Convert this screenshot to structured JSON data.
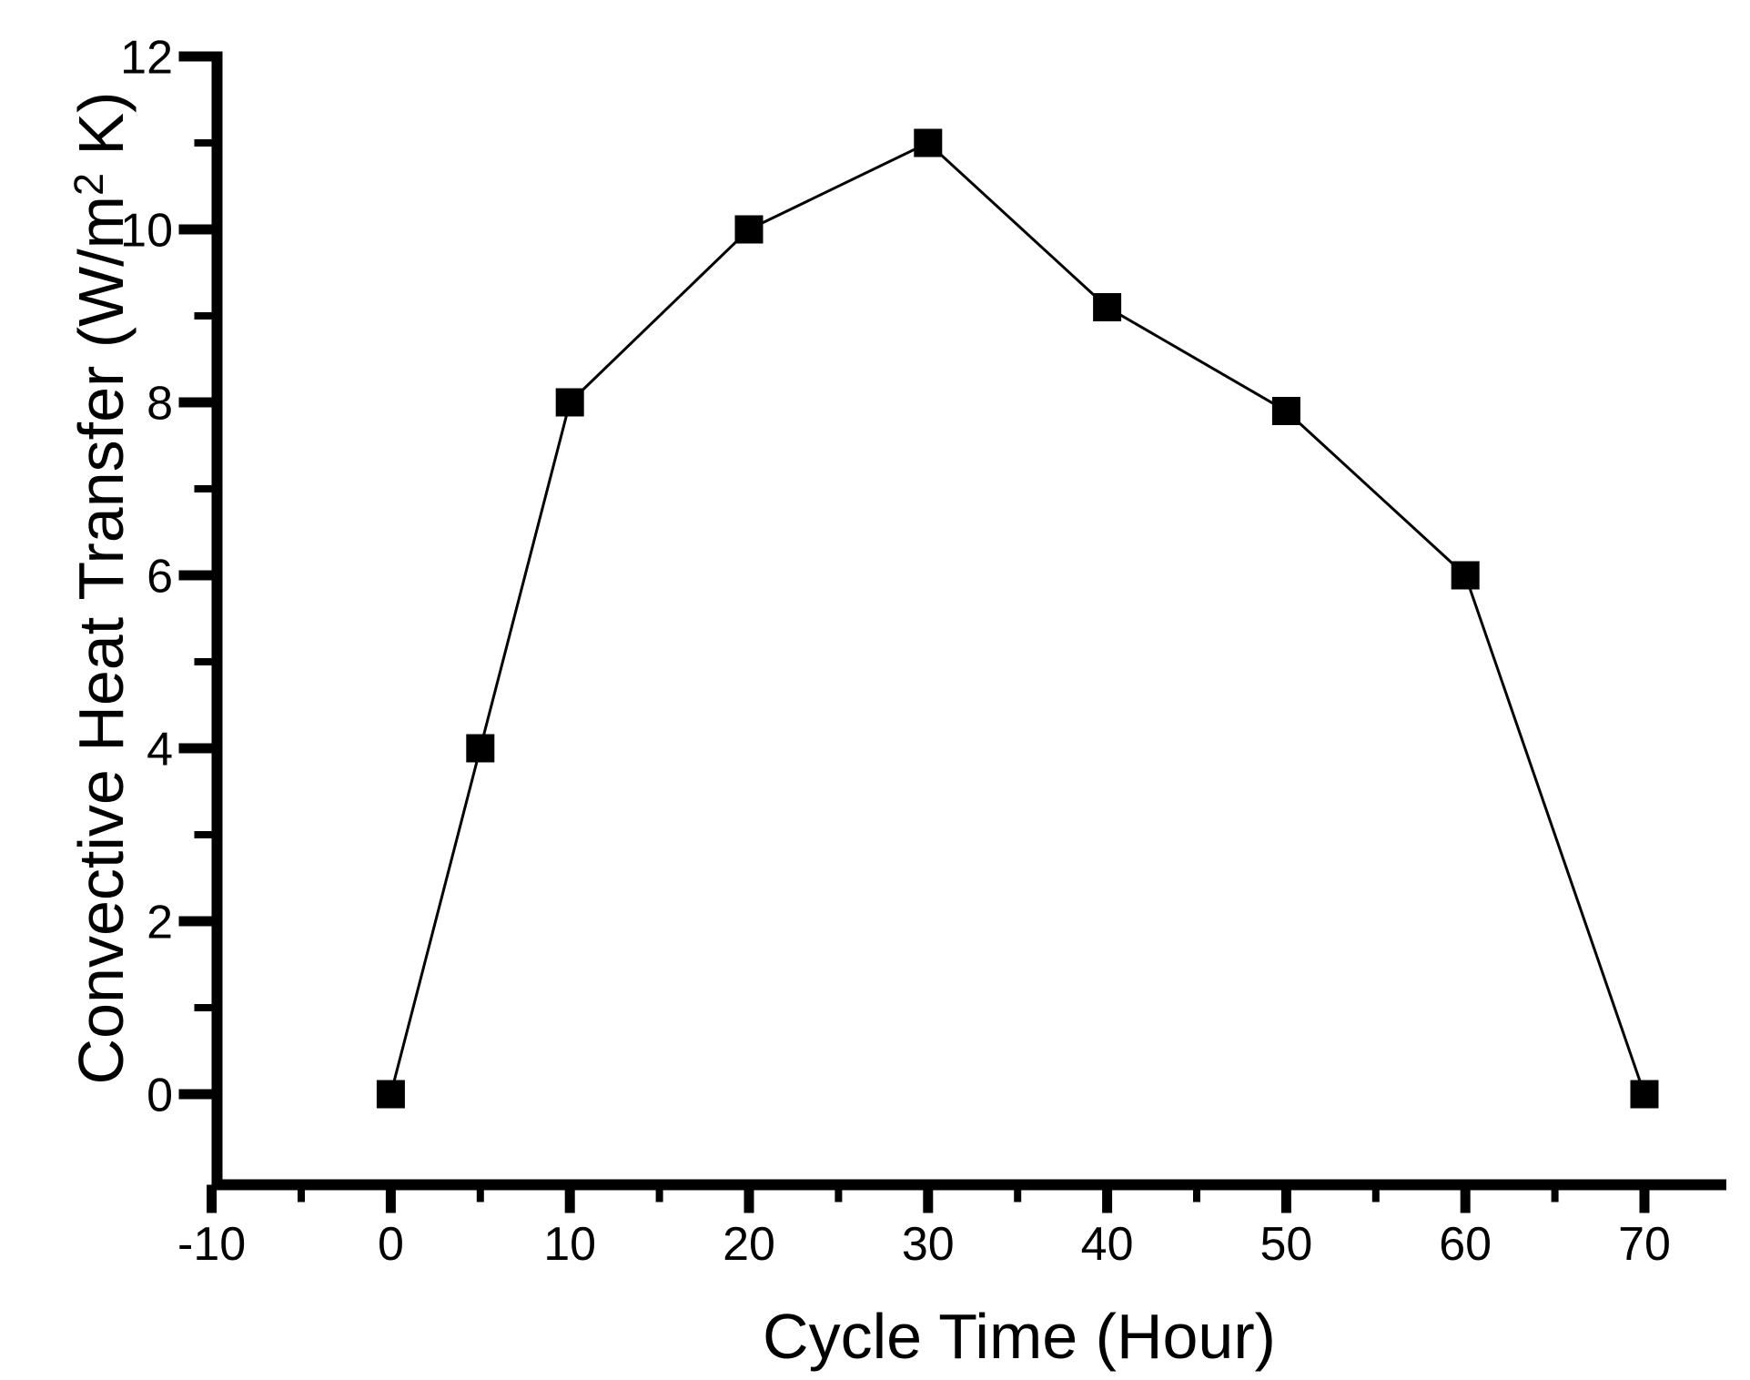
{
  "chart_data": {
    "type": "line",
    "series": [
      {
        "name": "convective-heat-transfer",
        "x": [
          0,
          5,
          10,
          20,
          30,
          40,
          50,
          60,
          70
        ],
        "y": [
          0,
          4,
          8,
          10,
          11,
          9.1,
          7.9,
          6,
          0
        ],
        "marker": "filled-square",
        "line_style": "solid",
        "color": "#000000"
      }
    ],
    "xlabel": "Cycle Time (Hour)",
    "ylabel": "Convective Heat Transfer (W/m² K)",
    "ylabel_parts": {
      "base": "Convective Heat Transfer (W/m",
      "superscript": "2",
      "end": " K)"
    },
    "x_major_ticks": [
      -10,
      0,
      10,
      20,
      30,
      40,
      50,
      60,
      70
    ],
    "x_minor_ticks": [
      -5,
      5,
      15,
      25,
      35,
      45,
      55,
      65
    ],
    "y_major_ticks": [
      0,
      2,
      4,
      6,
      8,
      10,
      12
    ],
    "y_minor_ticks": [
      1,
      3,
      5,
      7,
      9,
      11
    ],
    "xlim": [
      -10,
      74.6
    ],
    "ylim": [
      -1.05,
      12
    ],
    "grid": false,
    "legend": "none",
    "tick_direction": "out",
    "colors": {
      "line": "#000000",
      "marker": "#000000",
      "axis": "#000000",
      "text": "#000000",
      "background": "#ffffff"
    }
  }
}
